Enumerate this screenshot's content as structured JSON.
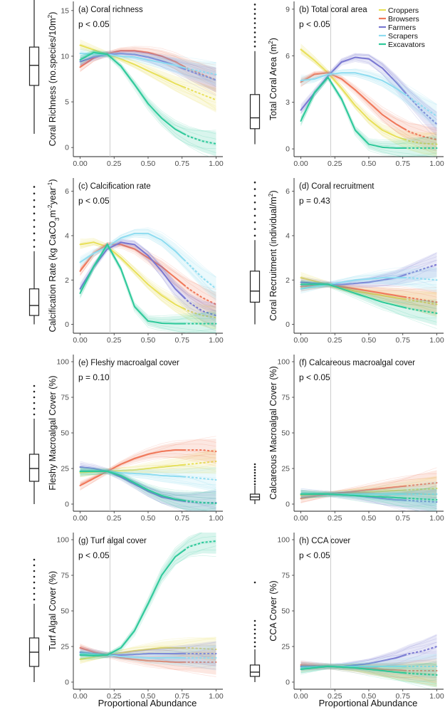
{
  "figure": {
    "x_label": "Proportional Abundance",
    "x_ticks": [
      "0.00",
      "0.25",
      "0.50",
      "0.75",
      "1.00"
    ],
    "legend": [
      {
        "name": "Croppers",
        "color": "#e8e05a"
      },
      {
        "name": "Browsers",
        "color": "#f0785a"
      },
      {
        "name": "Farmers",
        "color": "#7a78d2"
      },
      {
        "name": "Scrapers",
        "color": "#8edcf0"
      },
      {
        "name": "Excavators",
        "color": "#2ec99a"
      }
    ]
  },
  "chart_data": [
    {
      "type": "line",
      "title": "(a) Coral richness",
      "p_value": "p < 0.05",
      "ylabel": "Coral Richness (no.species/10m²)",
      "ylabel_parts": {
        "pre": "Coral Richness (no.species/10m",
        "sup": "2",
        "post": ")"
      },
      "ylim": [
        -1,
        16
      ],
      "yticks": [
        0,
        5,
        10,
        15
      ],
      "boxplot": {
        "whisker_low": 1.5,
        "q1": 6.8,
        "median": 9.0,
        "q3": 11.0,
        "whisker_high": 16.5,
        "outliers": []
      },
      "x": [
        0,
        0.1,
        0.2,
        0.3,
        0.4,
        0.5,
        0.6,
        0.7,
        0.8,
        0.9,
        1.0
      ],
      "series": [
        {
          "name": "Croppers",
          "values": [
            11.2,
            10.7,
            10.2,
            9.7,
            9.1,
            8.4,
            7.7,
            7.0,
            6.4,
            5.8,
            5.2
          ]
        },
        {
          "name": "Browsers",
          "values": [
            8.8,
            9.8,
            10.3,
            10.6,
            10.6,
            10.4,
            10.0,
            9.4,
            8.6,
            8.0,
            7.4
          ]
        },
        {
          "name": "Farmers",
          "values": [
            9.4,
            9.9,
            10.2,
            10.3,
            10.2,
            9.9,
            9.5,
            9.0,
            8.4,
            7.9,
            7.4
          ]
        },
        {
          "name": "Scrapers",
          "values": [
            10.3,
            10.2,
            10.2,
            10.0,
            9.9,
            9.6,
            9.3,
            9.0,
            8.6,
            8.3,
            8.0
          ]
        },
        {
          "name": "Excavators",
          "values": [
            9.6,
            10.4,
            10.2,
            8.9,
            6.9,
            4.8,
            3.2,
            2.0,
            1.2,
            0.7,
            0.4
          ]
        }
      ]
    },
    {
      "type": "line",
      "title": "(b) Total coral area",
      "p_value": "p < 0.05",
      "ylabel": "Total Coral Area (m²)",
      "ylabel_parts": {
        "pre": "Total Coral Area (m",
        "sup": "2",
        "post": ")"
      },
      "ylim": [
        -0.5,
        9.5
      ],
      "yticks": [
        0,
        3,
        6,
        9
      ],
      "boxplot": {
        "whisker_low": 0.3,
        "q1": 1.3,
        "median": 2.0,
        "q3": 3.5,
        "whisker_high": 6.3,
        "outliers": [
          6.6,
          6.9,
          7.2,
          7.5,
          7.8,
          8.1,
          8.4,
          8.7,
          9.0,
          9.3
        ]
      },
      "x": [
        0,
        0.1,
        0.2,
        0.3,
        0.4,
        0.5,
        0.6,
        0.7,
        0.8,
        0.9,
        1.0
      ],
      "series": [
        {
          "name": "Croppers",
          "values": [
            6.4,
            5.7,
            4.9,
            3.9,
            2.8,
            1.9,
            1.2,
            0.8,
            0.5,
            0.35,
            0.3
          ]
        },
        {
          "name": "Browsers",
          "values": [
            4.3,
            4.8,
            4.9,
            4.5,
            3.8,
            3.0,
            2.2,
            1.6,
            1.1,
            0.8,
            0.6
          ]
        },
        {
          "name": "Farmers",
          "values": [
            2.5,
            3.6,
            4.7,
            5.6,
            5.9,
            5.8,
            5.2,
            4.3,
            3.3,
            2.4,
            1.6
          ]
        },
        {
          "name": "Scrapers",
          "values": [
            4.4,
            4.5,
            4.8,
            4.9,
            4.9,
            4.7,
            4.4,
            3.9,
            3.3,
            2.7,
            2.1
          ]
        },
        {
          "name": "Excavators",
          "values": [
            1.8,
            3.6,
            4.6,
            3.2,
            1.2,
            0.3,
            0.1,
            0.05,
            0.05,
            0.05,
            0.05
          ]
        }
      ]
    },
    {
      "type": "line",
      "title": "(c) Calcification rate",
      "p_value": "p < 0.05",
      "ylabel": "Calcification Rate (kg CaCO₃m⁻²year⁻¹)",
      "ylabel_parts": {
        "pre": "Calcification Rate (kg CaCO",
        "sub": "3",
        "mid": "m",
        "sup": "-2",
        "mid2": "year",
        "sup2": "-1",
        "post": ")"
      },
      "ylim": [
        -0.4,
        6.6
      ],
      "yticks": [
        0,
        2,
        4,
        6
      ],
      "boxplot": {
        "whisker_low": 0.0,
        "q1": 0.4,
        "median": 0.85,
        "q3": 1.6,
        "whisker_high": 3.3,
        "outliers": [
          3.5,
          3.8,
          4.1,
          4.4,
          4.7,
          5.0,
          5.3,
          5.6,
          5.9,
          6.2
        ]
      },
      "x": [
        0,
        0.1,
        0.2,
        0.3,
        0.4,
        0.5,
        0.6,
        0.7,
        0.8,
        0.9,
        1.0
      ],
      "series": [
        {
          "name": "Croppers",
          "values": [
            3.6,
            3.7,
            3.5,
            3.0,
            2.4,
            1.8,
            1.3,
            0.9,
            0.6,
            0.4,
            0.3
          ]
        },
        {
          "name": "Browsers",
          "values": [
            2.4,
            3.2,
            3.6,
            3.6,
            3.4,
            3.0,
            2.6,
            2.1,
            1.6,
            1.2,
            0.9
          ]
        },
        {
          "name": "Farmers",
          "values": [
            1.6,
            2.6,
            3.4,
            3.7,
            3.6,
            3.1,
            2.4,
            1.6,
            1.0,
            0.6,
            0.4
          ]
        },
        {
          "name": "Scrapers",
          "values": [
            2.8,
            3.2,
            3.5,
            3.9,
            4.1,
            4.1,
            3.8,
            3.3,
            2.7,
            2.1,
            1.6
          ]
        },
        {
          "name": "Excavators",
          "values": [
            1.4,
            2.6,
            3.6,
            2.5,
            0.8,
            0.15,
            0.05,
            0.03,
            0.03,
            0.03,
            0.03
          ]
        }
      ]
    },
    {
      "type": "line",
      "title": "(d) Coral recruitment",
      "p_value": "p = 0.43",
      "ylabel": "Coral Recruitment (individual/m²)",
      "ylabel_parts": {
        "pre": "Coral Recruitment (individual/m",
        "sup": "2",
        "post": ")"
      },
      "ylim": [
        -0.4,
        6.6
      ],
      "yticks": [
        0,
        2,
        4,
        6
      ],
      "boxplot": {
        "whisker_low": 0.0,
        "q1": 1.0,
        "median": 1.5,
        "q3": 2.4,
        "whisker_high": 3.8,
        "outliers": [
          4.0,
          4.3,
          4.6,
          4.9,
          5.2,
          5.5,
          5.8,
          6.1,
          6.4
        ]
      },
      "x": [
        0,
        0.1,
        0.2,
        0.3,
        0.4,
        0.5,
        0.6,
        0.7,
        0.8,
        0.9,
        1.0
      ],
      "series": [
        {
          "name": "Croppers",
          "values": [
            2.1,
            1.95,
            1.8,
            1.65,
            1.5,
            1.4,
            1.3,
            1.2,
            1.1,
            1.0,
            0.9
          ]
        },
        {
          "name": "Browsers",
          "values": [
            1.7,
            1.75,
            1.8,
            1.7,
            1.6,
            1.5,
            1.4,
            1.3,
            1.2,
            1.1,
            1.0
          ]
        },
        {
          "name": "Farmers",
          "values": [
            1.9,
            1.85,
            1.8,
            1.8,
            1.85,
            1.9,
            2.0,
            2.1,
            2.3,
            2.5,
            2.7
          ]
        },
        {
          "name": "Scrapers",
          "values": [
            1.6,
            1.7,
            1.8,
            1.9,
            2.0,
            2.05,
            2.1,
            2.1,
            2.1,
            2.05,
            2.0
          ]
        },
        {
          "name": "Excavators",
          "values": [
            1.8,
            1.8,
            1.8,
            1.6,
            1.4,
            1.2,
            1.0,
            0.85,
            0.7,
            0.6,
            0.5
          ]
        }
      ]
    },
    {
      "type": "line",
      "title": "(e) Fleshy macroalgal cover",
      "p_value": "p = 0.10",
      "ylabel": "Fleshy Macroalgal Cover (%)",
      "ylabel_parts": {
        "pre": "Fleshy Macroalgal Cover (%)"
      },
      "ylim": [
        -5,
        105
      ],
      "yticks": [
        0,
        25,
        50,
        75,
        100
      ],
      "boxplot": {
        "whisker_low": 0,
        "q1": 16,
        "median": 25,
        "q3": 35,
        "whisker_high": 60,
        "outliers": [
          63,
          67,
          71,
          75,
          79,
          83
        ]
      },
      "x": [
        0,
        0.1,
        0.2,
        0.3,
        0.4,
        0.5,
        0.6,
        0.7,
        0.8,
        0.9,
        1.0
      ],
      "series": [
        {
          "name": "Croppers",
          "values": [
            22,
            22.5,
            23,
            23.5,
            24,
            25,
            26,
            27,
            28,
            29,
            30
          ]
        },
        {
          "name": "Browsers",
          "values": [
            13,
            18,
            23,
            28,
            32,
            35,
            37,
            38,
            38,
            38,
            37
          ]
        },
        {
          "name": "Farmers",
          "values": [
            26,
            25,
            23,
            19,
            14,
            9,
            5,
            3,
            1.5,
            1,
            1
          ]
        },
        {
          "name": "Scrapers",
          "values": [
            23,
            23,
            23,
            22,
            21.5,
            21,
            20,
            19.5,
            19,
            18,
            17
          ]
        },
        {
          "name": "Excavators",
          "values": [
            23,
            23,
            23,
            20,
            15,
            10,
            6,
            3.5,
            2,
            1,
            0.5
          ]
        }
      ]
    },
    {
      "type": "line",
      "title": "(f) Calcareous macroalgal cover",
      "p_value": "p < 0.05",
      "ylabel": "Calcareous Macroalgal Cover (%)",
      "ylabel_parts": {
        "pre": "Calcareous Macroalgal Cover (%)"
      },
      "ylim": [
        -5,
        105
      ],
      "yticks": [
        0,
        25,
        50,
        75,
        100
      ],
      "boxplot": {
        "whisker_low": 0,
        "q1": 3,
        "median": 5,
        "q3": 7,
        "whisker_high": 13,
        "outliers": [
          14,
          16,
          18,
          20,
          22,
          24,
          26,
          28
        ]
      },
      "x": [
        0,
        0.1,
        0.2,
        0.3,
        0.4,
        0.5,
        0.6,
        0.7,
        0.8,
        0.9,
        1.0
      ],
      "series": [
        {
          "name": "Croppers",
          "values": [
            6,
            6.5,
            7,
            7.5,
            8,
            8.5,
            9,
            9.5,
            10,
            10.5,
            11
          ]
        },
        {
          "name": "Browsers",
          "values": [
            4,
            5.5,
            7,
            8,
            9,
            10,
            11,
            12,
            13,
            14,
            15
          ]
        },
        {
          "name": "Farmers",
          "values": [
            7,
            7,
            7,
            6.5,
            6,
            5,
            4,
            3,
            2.5,
            2,
            1.5
          ]
        },
        {
          "name": "Scrapers",
          "values": [
            7,
            7,
            7,
            7,
            7,
            7,
            7,
            7,
            7,
            7,
            7
          ]
        },
        {
          "name": "Excavators",
          "values": [
            7,
            7,
            7,
            6.5,
            6,
            5.5,
            5,
            4.5,
            4,
            3.5,
            3
          ]
        }
      ]
    },
    {
      "type": "line",
      "title": "(g) Turf algal cover",
      "p_value": "p < 0.05",
      "ylabel": "Turf Algal Cover (%)",
      "ylabel_parts": {
        "pre": "Turf Algal Cover (%)"
      },
      "ylim": [
        -5,
        105
      ],
      "yticks": [
        0,
        25,
        50,
        75,
        100
      ],
      "boxplot": {
        "whisker_low": 0,
        "q1": 11,
        "median": 21,
        "q3": 31,
        "whisker_high": 55,
        "outliers": [
          58,
          62,
          66,
          70,
          74,
          78,
          82,
          86
        ]
      },
      "x": [
        0,
        0.1,
        0.2,
        0.3,
        0.4,
        0.5,
        0.6,
        0.7,
        0.8,
        0.9,
        1.0
      ],
      "series": [
        {
          "name": "Croppers",
          "values": [
            16,
            17.5,
            19,
            20.5,
            22,
            23,
            24,
            24,
            24,
            23.5,
            23
          ]
        },
        {
          "name": "Browsers",
          "values": [
            24,
            21,
            19,
            17,
            16,
            15,
            14.5,
            14,
            14,
            14,
            14
          ]
        },
        {
          "name": "Farmers",
          "values": [
            21,
            20,
            19,
            19,
            19.5,
            20,
            20,
            20,
            20,
            20,
            20
          ]
        },
        {
          "name": "Scrapers",
          "values": [
            20,
            19.5,
            19,
            18,
            17.5,
            17,
            17,
            17,
            17,
            17,
            17
          ]
        },
        {
          "name": "Excavators",
          "values": [
            19,
            18.5,
            19,
            24,
            36,
            55,
            75,
            88,
            95,
            98,
            99
          ]
        }
      ]
    },
    {
      "type": "line",
      "title": "(h) CCA cover",
      "p_value": "p < 0.05",
      "ylabel": "CCA Cover (%)",
      "ylabel_parts": {
        "pre": "CCA Cover (%)"
      },
      "ylim": [
        -5,
        105
      ],
      "yticks": [
        0,
        25,
        50,
        75,
        100
      ],
      "boxplot": {
        "whisker_low": 0,
        "q1": 4,
        "median": 7,
        "q3": 12,
        "whisker_high": 23,
        "outliers": [
          25,
          28,
          31,
          34,
          37,
          40,
          43,
          70
        ]
      },
      "x": [
        0,
        0.1,
        0.2,
        0.3,
        0.4,
        0.5,
        0.6,
        0.7,
        0.8,
        0.9,
        1.0
      ],
      "series": [
        {
          "name": "Croppers",
          "values": [
            10,
            10.5,
            11,
            10.5,
            10,
            9,
            8,
            7,
            6.5,
            6,
            5
          ]
        },
        {
          "name": "Browsers",
          "values": [
            12,
            11.5,
            11,
            10.5,
            10,
            9.5,
            9,
            8.5,
            8,
            8,
            8
          ]
        },
        {
          "name": "Farmers",
          "values": [
            11,
            11,
            11,
            11,
            12,
            13,
            15,
            17,
            20,
            22,
            25
          ]
        },
        {
          "name": "Scrapers",
          "values": [
            10,
            10.5,
            11,
            11,
            11,
            11,
            11,
            11,
            11,
            11,
            11
          ]
        },
        {
          "name": "Excavators",
          "values": [
            9,
            10,
            11,
            10.5,
            10,
            9,
            8,
            7,
            6,
            5.5,
            5
          ]
        }
      ]
    }
  ]
}
